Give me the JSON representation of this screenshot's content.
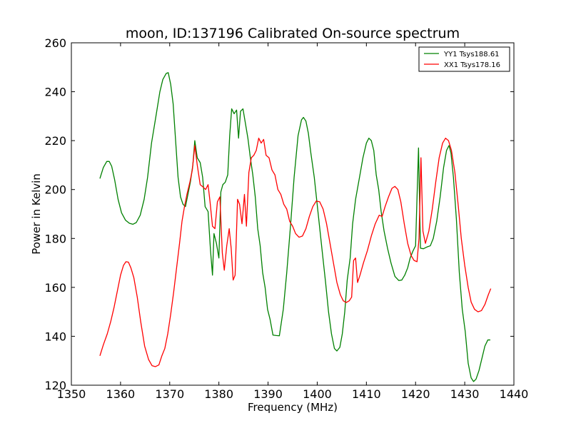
{
  "chart_data": {
    "type": "line",
    "title": "moon, ID:137196 Calibrated On-source spectrum",
    "xlabel": "Frequency (MHz)",
    "ylabel": "Power in Kelvin",
    "xlim": [
      1350,
      1440
    ],
    "ylim": [
      120,
      260
    ],
    "xticks": [
      1350,
      1360,
      1370,
      1380,
      1390,
      1400,
      1410,
      1420,
      1430,
      1440
    ],
    "yticks": [
      120,
      140,
      160,
      180,
      200,
      220,
      240,
      260
    ],
    "grid": false,
    "legend_position": "top-right",
    "series": [
      {
        "name": "YY1 Tsys188.61",
        "color": "#008000",
        "points": [
          [
            1355.8,
            204.5
          ],
          [
            1356.5,
            209
          ],
          [
            1357.2,
            211.5
          ],
          [
            1357.7,
            211.5
          ],
          [
            1358.2,
            209.5
          ],
          [
            1358.8,
            204
          ],
          [
            1359.5,
            196
          ],
          [
            1360.2,
            190.5
          ],
          [
            1361,
            187.5
          ],
          [
            1361.8,
            186.2
          ],
          [
            1362.5,
            185.8
          ],
          [
            1363.2,
            186.5
          ],
          [
            1364,
            189.5
          ],
          [
            1364.8,
            196
          ],
          [
            1365.5,
            205
          ],
          [
            1366.3,
            219
          ],
          [
            1367.2,
            230
          ],
          [
            1368,
            240
          ],
          [
            1368.6,
            245
          ],
          [
            1369.3,
            247.5
          ],
          [
            1369.7,
            247.8
          ],
          [
            1370.2,
            243
          ],
          [
            1370.7,
            235
          ],
          [
            1371.2,
            220
          ],
          [
            1371.7,
            205
          ],
          [
            1372.2,
            197
          ],
          [
            1372.7,
            194
          ],
          [
            1373.2,
            193
          ],
          [
            1373.7,
            198
          ],
          [
            1374.2,
            203
          ],
          [
            1374.7,
            210
          ],
          [
            1375.1,
            220
          ],
          [
            1375.6,
            213
          ],
          [
            1376.2,
            211
          ],
          [
            1376.7,
            205
          ],
          [
            1377.2,
            193
          ],
          [
            1377.8,
            191
          ],
          [
            1378.3,
            175
          ],
          [
            1378.7,
            165
          ],
          [
            1379,
            182
          ],
          [
            1379.5,
            178
          ],
          [
            1380,
            172
          ],
          [
            1380.4,
            199
          ],
          [
            1380.8,
            202
          ],
          [
            1381.3,
            203
          ],
          [
            1381.8,
            206
          ],
          [
            1382.2,
            222
          ],
          [
            1382.6,
            233
          ],
          [
            1383.1,
            231
          ],
          [
            1383.6,
            232.5
          ],
          [
            1384,
            221
          ],
          [
            1384.4,
            232
          ],
          [
            1384.9,
            233
          ],
          [
            1385.4,
            227
          ],
          [
            1385.9,
            221
          ],
          [
            1386.4,
            213
          ],
          [
            1386.9,
            206
          ],
          [
            1387.4,
            197
          ],
          [
            1387.9,
            184
          ],
          [
            1388.4,
            177
          ],
          [
            1388.9,
            166
          ],
          [
            1389.4,
            160
          ],
          [
            1389.9,
            151
          ],
          [
            1390.4,
            147
          ],
          [
            1391,
            140.5
          ],
          [
            1391.7,
            140.3
          ],
          [
            1392.3,
            140.2
          ],
          [
            1393.1,
            151
          ],
          [
            1393.8,
            166
          ],
          [
            1394.6,
            186
          ],
          [
            1395.3,
            205
          ],
          [
            1396.1,
            222
          ],
          [
            1396.8,
            228.5
          ],
          [
            1397.2,
            229.5
          ],
          [
            1397.7,
            228
          ],
          [
            1398.2,
            223
          ],
          [
            1398.7,
            215
          ],
          [
            1399.4,
            205
          ],
          [
            1400.2,
            190
          ],
          [
            1401,
            175
          ],
          [
            1401.7,
            162
          ],
          [
            1402.3,
            150
          ],
          [
            1402.9,
            141
          ],
          [
            1403.5,
            135
          ],
          [
            1404,
            134
          ],
          [
            1404.6,
            135.5
          ],
          [
            1405.1,
            141
          ],
          [
            1405.6,
            150
          ],
          [
            1406.1,
            163
          ],
          [
            1406.7,
            172
          ],
          [
            1407.2,
            186
          ],
          [
            1407.8,
            196
          ],
          [
            1408.6,
            205
          ],
          [
            1409.3,
            213
          ],
          [
            1410,
            219
          ],
          [
            1410.5,
            221
          ],
          [
            1411,
            220
          ],
          [
            1411.5,
            216
          ],
          [
            1412,
            206
          ],
          [
            1412.5,
            200
          ],
          [
            1413,
            191
          ],
          [
            1413.6,
            183
          ],
          [
            1414.3,
            176
          ],
          [
            1415,
            170
          ],
          [
            1415.8,
            164.5
          ],
          [
            1416.6,
            162.8
          ],
          [
            1417.2,
            163
          ],
          [
            1417.8,
            165
          ],
          [
            1418.4,
            168
          ],
          [
            1418.9,
            172
          ],
          [
            1419.5,
            175
          ],
          [
            1420,
            177
          ],
          [
            1420.6,
            217
          ],
          [
            1421,
            176
          ],
          [
            1421.6,
            175.8
          ],
          [
            1422.3,
            176.5
          ],
          [
            1423,
            177
          ],
          [
            1423.6,
            180
          ],
          [
            1424.3,
            187
          ],
          [
            1425,
            197
          ],
          [
            1425.7,
            209
          ],
          [
            1426.3,
            216
          ],
          [
            1426.8,
            218
          ],
          [
            1427.2,
            215
          ],
          [
            1427.7,
            205
          ],
          [
            1428.3,
            188
          ],
          [
            1428.9,
            166
          ],
          [
            1429.5,
            151
          ],
          [
            1430.1,
            142
          ],
          [
            1430.7,
            129
          ],
          [
            1431.3,
            123
          ],
          [
            1431.8,
            121.5
          ],
          [
            1432.3,
            122.5
          ],
          [
            1432.9,
            126
          ],
          [
            1433.5,
            131
          ],
          [
            1434.1,
            136
          ],
          [
            1434.7,
            138.5
          ],
          [
            1435.2,
            138.5
          ]
        ]
      },
      {
        "name": "XX1 Tsys178.16",
        "color": "#ff0000",
        "points": [
          [
            1355.8,
            132
          ],
          [
            1356.5,
            136.5
          ],
          [
            1357.3,
            141
          ],
          [
            1358,
            146
          ],
          [
            1358.7,
            152
          ],
          [
            1359.4,
            159
          ],
          [
            1360,
            165
          ],
          [
            1360.6,
            169
          ],
          [
            1361.1,
            170.5
          ],
          [
            1361.6,
            170.3
          ],
          [
            1362.1,
            168
          ],
          [
            1362.7,
            164
          ],
          [
            1363.4,
            156
          ],
          [
            1364.1,
            146
          ],
          [
            1364.9,
            136
          ],
          [
            1365.7,
            130.5
          ],
          [
            1366.4,
            128
          ],
          [
            1367.1,
            127.6
          ],
          [
            1367.8,
            128.3
          ],
          [
            1368.4,
            132
          ],
          [
            1369,
            135
          ],
          [
            1369.6,
            141
          ],
          [
            1370.2,
            149
          ],
          [
            1370.8,
            158
          ],
          [
            1371.4,
            168
          ],
          [
            1372,
            178
          ],
          [
            1372.5,
            187
          ],
          [
            1373,
            193
          ],
          [
            1373.5,
            198
          ],
          [
            1374.1,
            203
          ],
          [
            1374.6,
            208
          ],
          [
            1375.1,
            218
          ],
          [
            1375.6,
            210
          ],
          [
            1376.2,
            202
          ],
          [
            1376.8,
            201
          ],
          [
            1377.3,
            200
          ],
          [
            1377.8,
            202
          ],
          [
            1378.2,
            195
          ],
          [
            1378.7,
            185
          ],
          [
            1379.2,
            184
          ],
          [
            1379.7,
            195
          ],
          [
            1380.2,
            197
          ],
          [
            1380.7,
            174
          ],
          [
            1381.1,
            167
          ],
          [
            1381.6,
            177
          ],
          [
            1382.1,
            184
          ],
          [
            1382.5,
            176
          ],
          [
            1382.9,
            163
          ],
          [
            1383.3,
            165
          ],
          [
            1383.8,
            196
          ],
          [
            1384.2,
            194
          ],
          [
            1384.7,
            186
          ],
          [
            1385.2,
            198
          ],
          [
            1385.6,
            185
          ],
          [
            1386.1,
            207
          ],
          [
            1386.6,
            213
          ],
          [
            1387.1,
            214
          ],
          [
            1387.6,
            216
          ],
          [
            1388.1,
            221
          ],
          [
            1388.6,
            219
          ],
          [
            1389.1,
            220.5
          ],
          [
            1389.6,
            214
          ],
          [
            1390.2,
            213
          ],
          [
            1390.8,
            208
          ],
          [
            1391.4,
            206
          ],
          [
            1392,
            200
          ],
          [
            1392.6,
            198
          ],
          [
            1393.2,
            194
          ],
          [
            1393.8,
            192
          ],
          [
            1394.4,
            187
          ],
          [
            1395,
            185
          ],
          [
            1395.6,
            182
          ],
          [
            1396.3,
            180.5
          ],
          [
            1397,
            181
          ],
          [
            1397.7,
            184
          ],
          [
            1398.4,
            189
          ],
          [
            1399.1,
            193
          ],
          [
            1399.8,
            195.3
          ],
          [
            1400.5,
            195
          ],
          [
            1401.2,
            192
          ],
          [
            1401.9,
            186
          ],
          [
            1402.6,
            178
          ],
          [
            1403.3,
            170
          ],
          [
            1404,
            162
          ],
          [
            1404.7,
            157
          ],
          [
            1405.3,
            154.5
          ],
          [
            1405.9,
            153.8
          ],
          [
            1406.5,
            154.5
          ],
          [
            1407,
            156
          ],
          [
            1407.4,
            171
          ],
          [
            1407.8,
            172
          ],
          [
            1408.2,
            162
          ],
          [
            1408.7,
            165
          ],
          [
            1409.4,
            170
          ],
          [
            1410.2,
            175
          ],
          [
            1411,
            181
          ],
          [
            1411.8,
            186
          ],
          [
            1412.6,
            189.5
          ],
          [
            1413.2,
            189
          ],
          [
            1413.8,
            193
          ],
          [
            1414.5,
            197
          ],
          [
            1415.2,
            200.5
          ],
          [
            1415.8,
            201.3
          ],
          [
            1416.4,
            200
          ],
          [
            1417,
            195
          ],
          [
            1417.7,
            186
          ],
          [
            1418.4,
            178
          ],
          [
            1419.1,
            173
          ],
          [
            1419.7,
            171
          ],
          [
            1420.3,
            170.5
          ],
          [
            1420.7,
            180
          ],
          [
            1421.1,
            213
          ],
          [
            1421.5,
            183
          ],
          [
            1422,
            178
          ],
          [
            1422.7,
            183
          ],
          [
            1423.4,
            192
          ],
          [
            1424.1,
            203
          ],
          [
            1424.8,
            213
          ],
          [
            1425.5,
            219
          ],
          [
            1426.1,
            221
          ],
          [
            1426.7,
            220
          ],
          [
            1427.3,
            216
          ],
          [
            1428,
            207
          ],
          [
            1428.7,
            193
          ],
          [
            1429.3,
            180
          ],
          [
            1430,
            169
          ],
          [
            1430.7,
            160
          ],
          [
            1431.3,
            154
          ],
          [
            1432,
            151
          ],
          [
            1432.7,
            150
          ],
          [
            1433.4,
            150.5
          ],
          [
            1434.1,
            153
          ],
          [
            1434.8,
            157
          ],
          [
            1435.3,
            159.5
          ]
        ]
      }
    ]
  }
}
